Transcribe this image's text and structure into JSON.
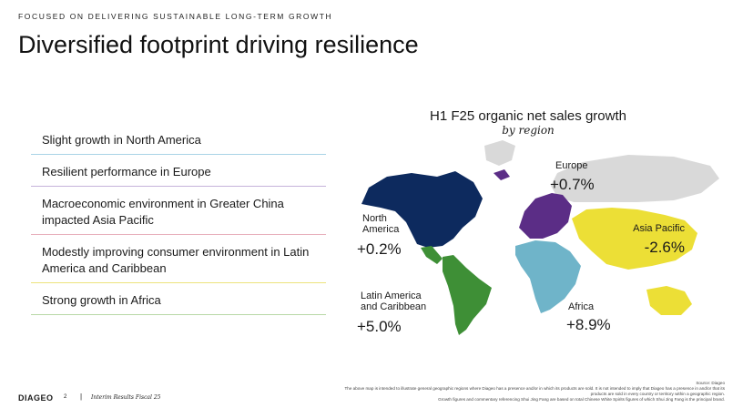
{
  "header": {
    "kicker": "FOCUSED ON DELIVERING SUSTAINABLE LONG-TERM GROWTH",
    "title": "Diversified footprint driving resilience"
  },
  "bullets": [
    {
      "text": "Slight growth in North America"
    },
    {
      "text": "Resilient performance in Europe"
    },
    {
      "text": "Macroeconomic environment in Greater China impacted Asia Pacific"
    },
    {
      "text": "Modestly improving consumer environment in Latin America and Caribbean"
    },
    {
      "text": "Strong growth in Africa"
    }
  ],
  "chart_data": {
    "type": "choropleth-map",
    "title": "H1 F25 organic net sales growth",
    "subtitle": "by region",
    "unit": "%",
    "regions": [
      {
        "name": "North America",
        "label": "North America",
        "value_label": "+0.2%",
        "value": 0.2,
        "color": "#0d2a5e"
      },
      {
        "name": "Europe",
        "label": "Europe",
        "value_label": "+0.7%",
        "value": 0.7,
        "color": "#5b2d86"
      },
      {
        "name": "Asia Pacific",
        "label": "Asia Pacific",
        "value_label": "-2.6%",
        "value": -2.6,
        "color": "#ecdf36"
      },
      {
        "name": "Latin America and Caribbean",
        "label": "Latin America and Caribbean",
        "value_label": "+5.0%",
        "value": 5.0,
        "color": "#3e8f36"
      },
      {
        "name": "Africa",
        "label": "Africa",
        "value_label": "+8.9%",
        "value": 8.9,
        "color": "#6fb4c9"
      }
    ],
    "other_region_color": "#d9d9d9"
  },
  "footer": {
    "logo": "DIAGEO",
    "page": "2",
    "separator": "|",
    "doc": "Interim Results Fiscal 25",
    "source_lines": [
      "Source: Diageo",
      "The above map is intended to illustrate general geographic regions where Diageo has a presence and/or in which its products are sold. It is not intended to imply that Diageo has a presence in and/or that its",
      "products are sold in every country or territory within a geographic region.",
      "Growth figures and commentary referencing Shui Jing Fang are based on total Chinese White Spirits figures of which Shui Jing Fang is the principal brand."
    ]
  }
}
